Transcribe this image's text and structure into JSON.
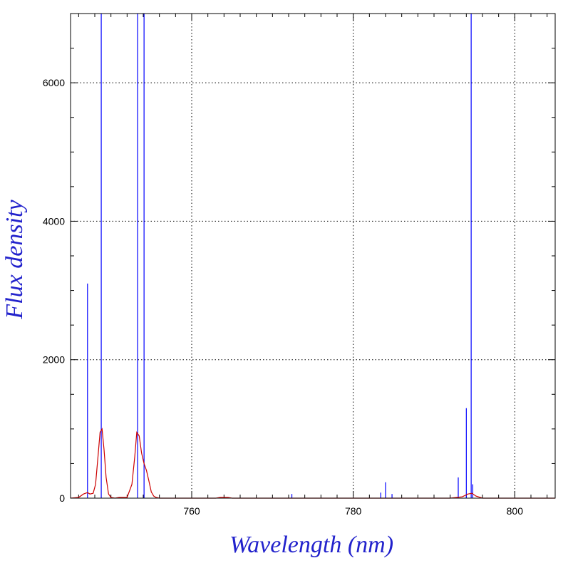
{
  "chart_data": {
    "type": "line",
    "title": "",
    "xlabel": "Wavelength (nm)",
    "ylabel": "Flux density",
    "xlim": [
      745,
      805
    ],
    "ylim": [
      0,
      7000
    ],
    "x_major_ticks": [
      760,
      780,
      800
    ],
    "x_minor_step": 2,
    "y_major_ticks": [
      0,
      2000,
      4000,
      6000
    ],
    "y_minor_step": 500,
    "grid": true,
    "grid_style": "dotted",
    "colors": {
      "axes": "#000000",
      "label": "#2222cc",
      "lines": "#0000ff",
      "model": "#cc0000"
    },
    "series": [
      {
        "style": "stick",
        "color": "#0000ff",
        "points": [
          {
            "x": 747.1,
            "y": 3100
          },
          {
            "x": 748.8,
            "y": 7000
          },
          {
            "x": 753.3,
            "y": 7000
          },
          {
            "x": 754.1,
            "y": 7000
          },
          {
            "x": 772.4,
            "y": 60
          },
          {
            "x": 783.4,
            "y": 80
          },
          {
            "x": 784.0,
            "y": 230
          },
          {
            "x": 784.8,
            "y": 60
          },
          {
            "x": 793.0,
            "y": 300
          },
          {
            "x": 794.0,
            "y": 1300
          },
          {
            "x": 794.6,
            "y": 7000
          },
          {
            "x": 794.8,
            "y": 200
          }
        ]
      },
      {
        "style": "line",
        "color": "#cc0000",
        "x": [
          745.0,
          746.0,
          746.6,
          747.1,
          747.4,
          747.8,
          748.1,
          748.4,
          748.65,
          748.9,
          749.15,
          749.4,
          749.7,
          750.0,
          750.5,
          751.0,
          752.0,
          752.6,
          752.95,
          753.2,
          753.5,
          753.8,
          754.1,
          754.4,
          754.7,
          755.0,
          755.3,
          755.6,
          756.0,
          757.0,
          760.0,
          763.0,
          763.5,
          764.0,
          764.5,
          765.0,
          770.0,
          780.0,
          790.0,
          792.0,
          793.5,
          794.2,
          794.7,
          795.2,
          796.0,
          800.0,
          805.0
        ],
        "y": [
          0,
          10,
          60,
          80,
          60,
          70,
          200,
          600,
          950,
          1000,
          700,
          300,
          60,
          10,
          0,
          10,
          10,
          200,
          600,
          950,
          900,
          650,
          500,
          400,
          250,
          90,
          30,
          10,
          0,
          0,
          0,
          0,
          10,
          10,
          10,
          0,
          0,
          0,
          0,
          0,
          20,
          60,
          70,
          30,
          0,
          0,
          0
        ]
      }
    ]
  }
}
